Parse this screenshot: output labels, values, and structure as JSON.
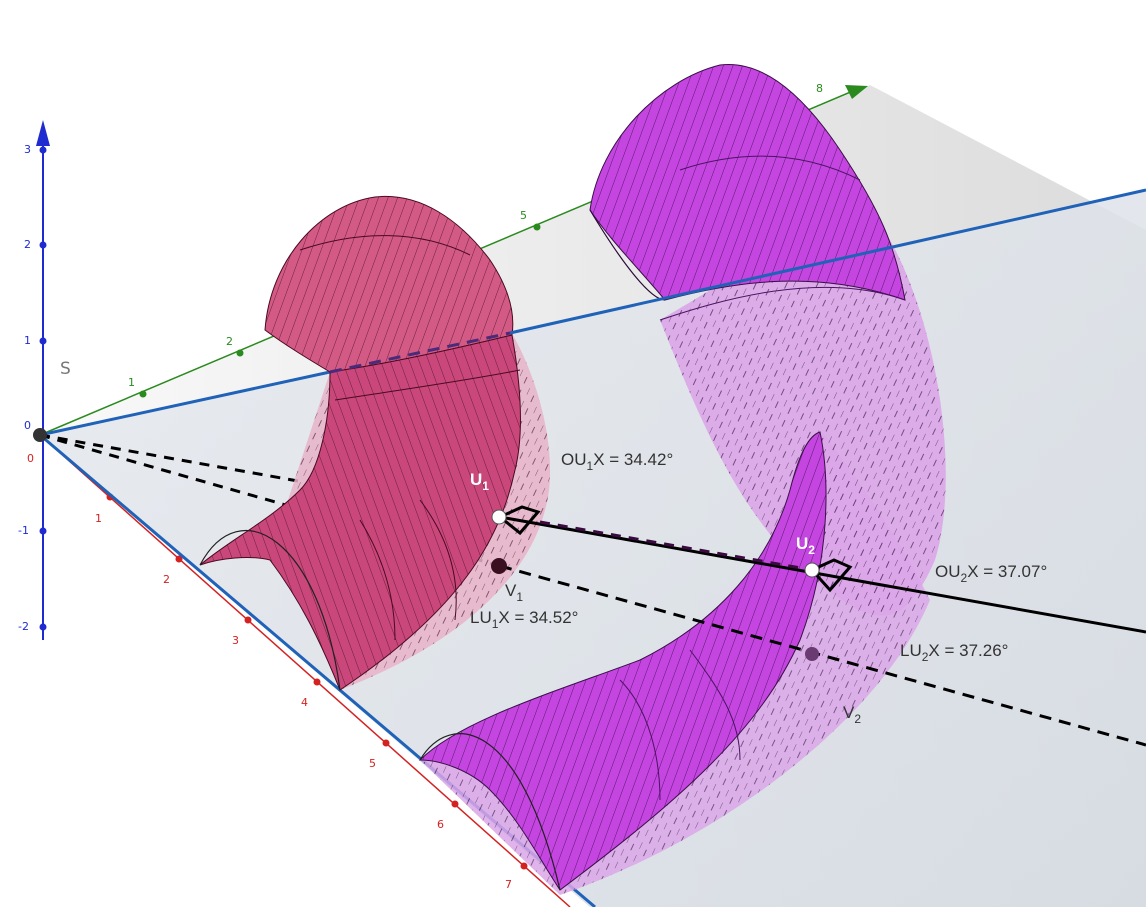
{
  "axes": {
    "z_ticks": [
      "3",
      "2",
      "1",
      "0",
      "-1",
      "-2"
    ],
    "x_ticks": [
      "1",
      "2",
      "3",
      "4",
      "5",
      "6",
      "7"
    ],
    "y_ticks": [
      "1",
      "2",
      "5",
      "8"
    ],
    "origin_labels": [
      "0",
      "0"
    ]
  },
  "plane_label": "S",
  "points": {
    "u1": {
      "main": "U",
      "sub": "1"
    },
    "u2": {
      "main": "U",
      "sub": "2"
    },
    "v1": {
      "main": "V",
      "sub": "1"
    },
    "v2": {
      "main": "V",
      "sub": "2"
    }
  },
  "angles": {
    "ou1x": {
      "pre": "OU",
      "sub": "1",
      "post": "X = 34.42°"
    },
    "lu1x": {
      "pre": "LU",
      "sub": "1",
      "post": "X = 34.52°"
    },
    "ou2x": {
      "pre": "OU",
      "sub": "2",
      "post": "X = 37.07°"
    },
    "lu2x": {
      "pre": "LU",
      "sub": "2",
      "post": "X = 37.26°"
    }
  },
  "colors": {
    "tube1": "#d45a86",
    "tube2": "#c445e0",
    "z_axis": "#1f2bd0",
    "x_axis": "#d42222",
    "y_axis": "#2a8a1e",
    "plane_edge": "#1f62b8"
  }
}
